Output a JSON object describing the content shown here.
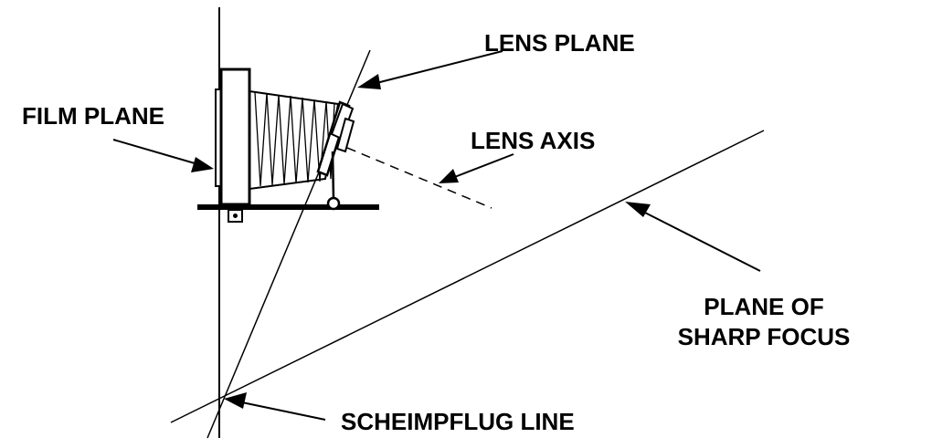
{
  "labels": {
    "lens_plane": "LENS PLANE",
    "film_plane": "FILM PLANE",
    "lens_axis": "LENS AXIS",
    "plane_of_sharp_focus_line1": "PLANE OF",
    "plane_of_sharp_focus_line2": "SHARP FOCUS",
    "scheimpflug_line": "SCHEIMPFLUG LINE"
  },
  "colors": {
    "ink": "#000000",
    "paper": "#ffffff"
  }
}
